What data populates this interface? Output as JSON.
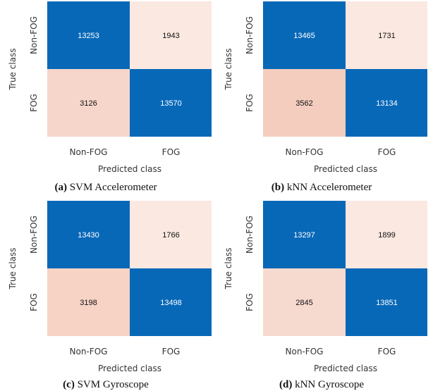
{
  "chart_data": [
    {
      "type": "heatmap",
      "caption_label": "(a)",
      "caption_text": "SVM Accelerometer",
      "ylabel": "True class",
      "xlabel": "Predicted class",
      "row_labels": [
        "Non-FOG",
        "FOG"
      ],
      "col_labels": [
        "Non-FOG",
        "FOG"
      ],
      "values": [
        [
          13253,
          1943
        ],
        [
          3126,
          13570
        ]
      ]
    },
    {
      "type": "heatmap",
      "caption_label": "(b)",
      "caption_text": "kNN Accelerometer",
      "ylabel": "True class",
      "xlabel": "Predicted class",
      "row_labels": [
        "Non-FOG",
        "FOG"
      ],
      "col_labels": [
        "Non-FOG",
        "FOG"
      ],
      "values": [
        [
          13465,
          1731
        ],
        [
          3562,
          13134
        ]
      ]
    },
    {
      "type": "heatmap",
      "caption_label": "(c)",
      "caption_text": "SVM Gyroscope",
      "ylabel": "True class",
      "xlabel": "Predicted class",
      "row_labels": [
        "Non-FOG",
        "FOG"
      ],
      "col_labels": [
        "Non-FOG",
        "FOG"
      ],
      "values": [
        [
          13430,
          1766
        ],
        [
          3198,
          13498
        ]
      ]
    },
    {
      "type": "heatmap",
      "caption_label": "(d)",
      "caption_text": "kNN Gyroscope",
      "ylabel": "True class",
      "xlabel": "Predicted class",
      "row_labels": [
        "Non-FOG",
        "FOG"
      ],
      "col_labels": [
        "Non-FOG",
        "FOG"
      ],
      "values": [
        [
          13297,
          1899
        ],
        [
          2845,
          13851
        ]
      ]
    }
  ],
  "colors": {
    "high": "#0868b8",
    "low": "#fbe8e0",
    "mid": "#f2c5b4",
    "text_dark": "#111111",
    "text_light": "#ffffff"
  }
}
